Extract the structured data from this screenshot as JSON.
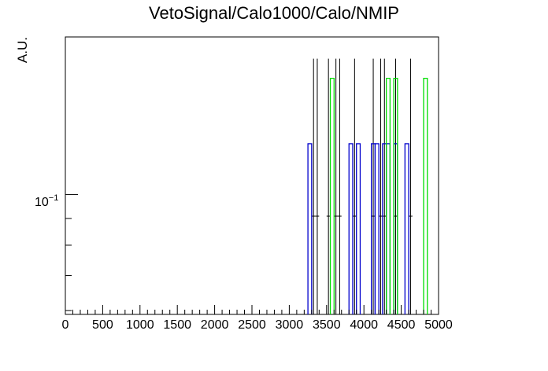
{
  "chart_data": {
    "type": "histogram",
    "title": "VetoSignal/Calo1000/Calo/NMIP",
    "xlabel": "",
    "ylabel": "A.U.",
    "xlim": [
      0,
      5000
    ],
    "ylim": [
      0.059,
      0.2
    ],
    "log_y": true,
    "bin_width": 50,
    "x_ticks": [
      "0",
      "500",
      "1000",
      "1500",
      "2000",
      "2500",
      "3000",
      "3500",
      "4000",
      "4500",
      "5000"
    ],
    "y_tick_label": "10",
    "y_tick_exponent": "−1",
    "y_tick_value": 0.1,
    "grid": false,
    "legend": "none",
    "series": [
      {
        "color": "#000000",
        "style": "error-bars",
        "points": [
          {
            "x": 3325,
            "y": 0.0909,
            "err_lo": 0.0909,
            "err_hi": 0.0909
          },
          {
            "x": 3375,
            "y": 0.0909,
            "err_lo": 0.0909,
            "err_hi": 0.0909
          },
          {
            "x": 3525,
            "y": 0.0909,
            "err_lo": 0.0909,
            "err_hi": 0.0909
          },
          {
            "x": 3625,
            "y": 0.0909,
            "err_lo": 0.0909,
            "err_hi": 0.0909
          },
          {
            "x": 3675,
            "y": 0.0909,
            "err_lo": 0.0909,
            "err_hi": 0.0909
          },
          {
            "x": 3875,
            "y": 0.0909,
            "err_lo": 0.0909,
            "err_hi": 0.0909
          },
          {
            "x": 4125,
            "y": 0.0909,
            "err_lo": 0.0909,
            "err_hi": 0.0909
          },
          {
            "x": 4225,
            "y": 0.0909,
            "err_lo": 0.0909,
            "err_hi": 0.0909
          },
          {
            "x": 4275,
            "y": 0.0909,
            "err_lo": 0.0909,
            "err_hi": 0.0909
          },
          {
            "x": 4425,
            "y": 0.0909,
            "err_lo": 0.0909,
            "err_hi": 0.0909
          },
          {
            "x": 4625,
            "y": 0.0909,
            "err_lo": 0.0909,
            "err_hi": 0.0909
          }
        ]
      },
      {
        "color": "#0000cc",
        "style": "step",
        "bins": [
          {
            "x": 3275,
            "y": 0.125
          },
          {
            "x": 3825,
            "y": 0.125
          },
          {
            "x": 3925,
            "y": 0.125
          },
          {
            "x": 4125,
            "y": 0.125
          },
          {
            "x": 4175,
            "y": 0.125
          },
          {
            "x": 4275,
            "y": 0.125
          },
          {
            "x": 4325,
            "y": 0.125
          },
          {
            "x": 4425,
            "y": 0.125
          },
          {
            "x": 4575,
            "y": 0.125
          }
        ]
      },
      {
        "color": "#00dd00",
        "style": "step",
        "bins": [
          {
            "x": 3575,
            "y": 0.1667
          },
          {
            "x": 4325,
            "y": 0.1667
          },
          {
            "x": 4425,
            "y": 0.1667
          },
          {
            "x": 4825,
            "y": 0.1667
          }
        ]
      }
    ]
  }
}
